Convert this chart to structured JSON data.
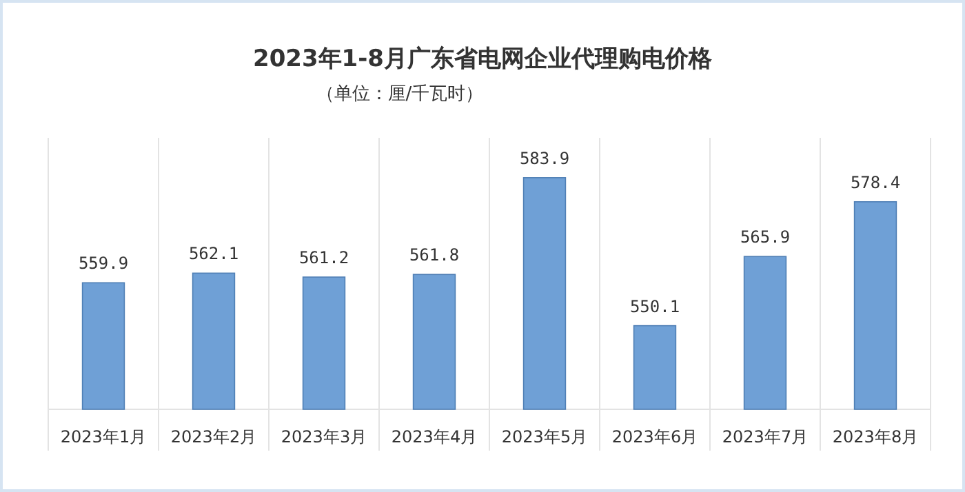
{
  "chart_data": {
    "type": "bar",
    "title": "2023年1-8月广东省电网企业代理购电价格",
    "subtitle": "（单位：厘/千瓦时）",
    "categories": [
      "2023年1月",
      "2023年2月",
      "2023年3月",
      "2023年4月",
      "2023年5月",
      "2023年6月",
      "2023年7月",
      "2023年8月"
    ],
    "values": [
      559.9,
      562.1,
      561.2,
      561.8,
      583.9,
      550.1,
      565.9,
      578.4
    ],
    "color": "#6fa0d6",
    "data_labels": true,
    "grid": "x",
    "ylim": [
      531,
      593
    ],
    "tick_labels": "x"
  }
}
